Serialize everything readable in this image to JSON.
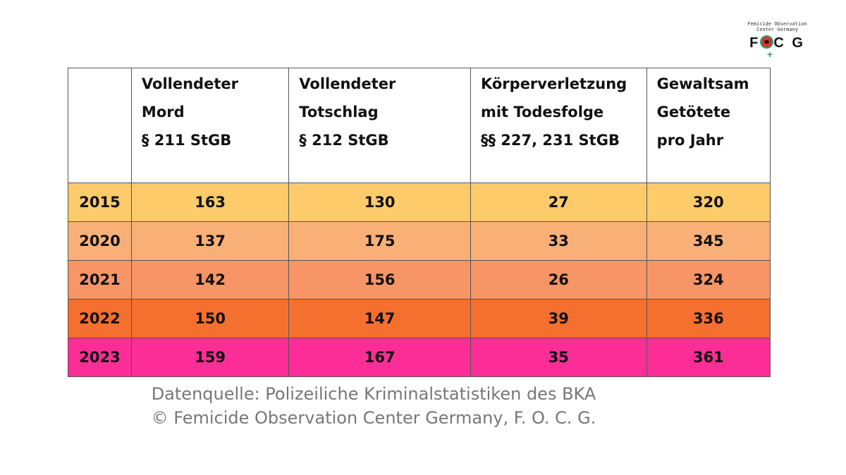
{
  "logo": {
    "line1": "Femicide Observation",
    "line2": "Center Germany",
    "letters": "FOCG",
    "colors": {
      "eye": "#d9361f",
      "symbol": "#2a9d8f"
    }
  },
  "chart_data": {
    "type": "table",
    "columns": [
      "",
      "Vollendeter Mord § 211 StGB",
      "Vollendeter Totschlag § 212 StGB",
      "Körperverletzung mit Todesfolge §§ 227, 231 StGB",
      "Gewaltsam Getötete pro Jahr"
    ],
    "header_lines": [
      [],
      [
        "Vollendeter Mord",
        "§ 211 StGB"
      ],
      [
        "Vollendeter Totschlag",
        "§ 212 StGB"
      ],
      [
        "Körperverletzung",
        "mit Todesfolge",
        "§§ 227, 231 StGB"
      ],
      [
        "Gewaltsam",
        "Getötete",
        "pro Jahr"
      ]
    ],
    "rows": [
      {
        "year": "2015",
        "values": [
          "163",
          "130",
          "27",
          "320"
        ],
        "color": "#fdcb6a"
      },
      {
        "year": "2020",
        "values": [
          "137",
          "175",
          "33",
          "345"
        ],
        "color": "#f9b077"
      },
      {
        "year": "2021",
        "values": [
          "142",
          "156",
          "26",
          "324"
        ],
        "color": "#f79566"
      },
      {
        "year": "2022",
        "values": [
          "150",
          "147",
          "39",
          "336"
        ],
        "color": "#f56f2e"
      },
      {
        "year": "2023",
        "values": [
          "159",
          "167",
          "35",
          "361"
        ],
        "color": "#fc2d97"
      }
    ]
  },
  "source": {
    "line1": "Datenquelle: Polizeiliche Kriminalstatistiken des BKA",
    "line2": "© Femicide Observation Center Germany, F. O. C. G."
  }
}
